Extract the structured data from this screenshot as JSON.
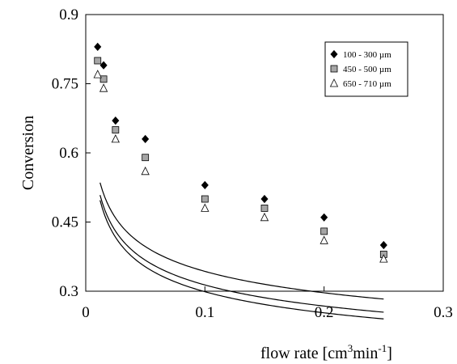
{
  "chart_data": {
    "type": "scatter",
    "title": "",
    "xlabel": "flow rate [cm",
    "xlabel_sup1": "3",
    "xlabel_mid": "min",
    "xlabel_sup2": "-1",
    "xlabel_end": "]",
    "ylabel": "Conversion",
    "xlim": [
      0,
      0.3
    ],
    "ylim": [
      0.3,
      0.9
    ],
    "x_ticks": [
      "0",
      "0.1",
      "0.2",
      "0.3"
    ],
    "y_ticks": [
      "0.3",
      "0.45",
      "0.6",
      "0.75",
      "0.9"
    ],
    "grid": false,
    "legend_position": "top-right",
    "x": [
      0.01,
      0.015,
      0.025,
      0.05,
      0.1,
      0.15,
      0.2,
      0.25
    ],
    "series": [
      {
        "name": "100 - 300 µm",
        "marker": "diamond",
        "color": "#000000",
        "values": [
          0.83,
          0.79,
          0.67,
          0.63,
          0.53,
          0.5,
          0.46,
          0.4
        ],
        "fit": {
          "a": 0.2115,
          "b": -0.21
        }
      },
      {
        "name": "450 - 500 µm",
        "marker": "square",
        "color": "#a6a6a6",
        "values": [
          0.8,
          0.76,
          0.65,
          0.59,
          0.5,
          0.48,
          0.43,
          0.38
        ],
        "fit": {
          "a": 0.1855,
          "b": -0.228
        }
      },
      {
        "name": "650 - 710 µm",
        "marker": "triangle",
        "color": "#ffffff",
        "values": [
          0.77,
          0.74,
          0.63,
          0.56,
          0.48,
          0.46,
          0.41,
          0.37
        ],
        "fit": {
          "a": 0.172,
          "b": -0.24
        }
      }
    ]
  }
}
